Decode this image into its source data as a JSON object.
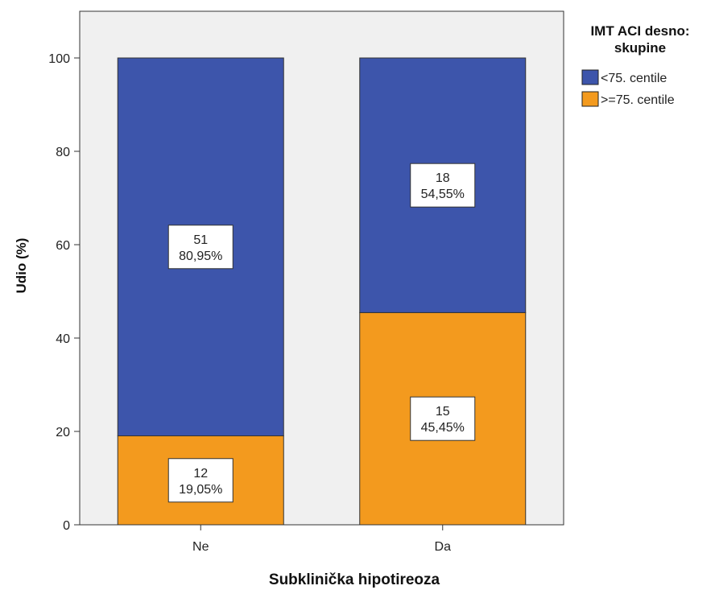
{
  "chart_data": {
    "type": "bar",
    "stacked": true,
    "xlabel": "Subklinička hipotireoza",
    "ylabel": "Udio (%)",
    "ylim": [
      0,
      110
    ],
    "yticks": [
      0,
      20,
      40,
      60,
      80,
      100
    ],
    "categories": [
      "Ne",
      "Da"
    ],
    "legend": {
      "title_line1": "IMT ACI desno:",
      "title_line2": "skupine",
      "placement": "right"
    },
    "series": [
      {
        "name": ">=75. centile",
        "color": "#f39a1e",
        "values": [
          19.05,
          45.45
        ],
        "counts": [
          "12",
          "15"
        ],
        "percent_labels": [
          "19,05%",
          "45,45%"
        ]
      },
      {
        "name": "<75. centile",
        "color": "#3d55ab",
        "values": [
          80.95,
          54.55
        ],
        "counts": [
          "51",
          "18"
        ],
        "percent_labels": [
          "80,95%",
          "54,55%"
        ]
      }
    ],
    "plot_background": "#f0f0f0"
  }
}
